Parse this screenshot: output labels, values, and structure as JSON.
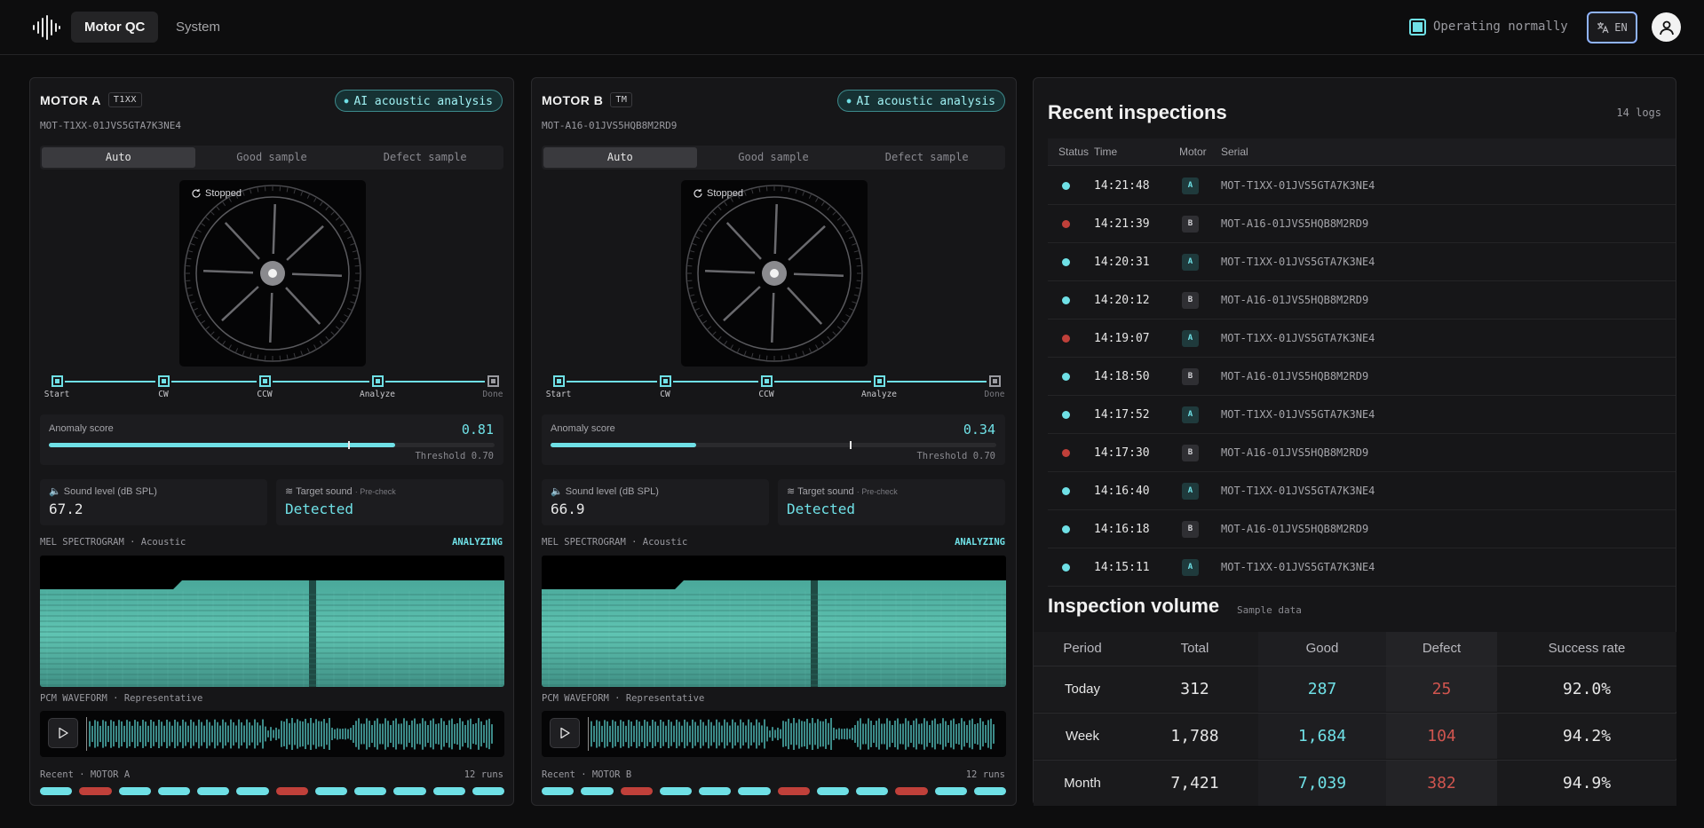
{
  "nav": {
    "tabs": [
      {
        "label": "Motor QC",
        "active": true
      },
      {
        "label": "System",
        "active": false
      }
    ],
    "status": "Operating normally",
    "language": "EN"
  },
  "motors": [
    {
      "name": "MOTOR A",
      "tag": "T1XX",
      "ai_badge": "AI acoustic analysis",
      "serial": "MOT-T1XX-01JVS5GTA7K3NE4",
      "modes": [
        "Auto",
        "Good sample",
        "Defect sample"
      ],
      "rotor_state": "Stopped",
      "steps": [
        "Start",
        "CW",
        "CCW",
        "Analyze",
        "Done"
      ],
      "anomaly_label": "Anomaly score",
      "anomaly_score": "0.81",
      "anomaly_fraction": 0.81,
      "threshold_label": "Threshold 0.70",
      "threshold_fraction": 0.7,
      "sound_label": "Sound level (dB SPL)",
      "sound_value": "67.2",
      "target_label": "Target sound",
      "target_sub": "· Pre-check",
      "target_value": "Detected",
      "spectro_label": "MEL SPECTROGRAM · Acoustic",
      "spectro_status": "ANALYZING",
      "wave_label": "PCM WAVEFORM · Representative",
      "recent_label": "Recent · MOTOR A",
      "recent_runs": "12 runs",
      "runs": [
        "good",
        "defect",
        "good",
        "good",
        "good",
        "good",
        "defect",
        "good",
        "good",
        "good",
        "good",
        "good"
      ]
    },
    {
      "name": "MOTOR B",
      "tag": "TM",
      "ai_badge": "AI acoustic analysis",
      "serial": "MOT-A16-01JVS5HQB8M2RD9",
      "modes": [
        "Auto",
        "Good sample",
        "Defect sample"
      ],
      "rotor_state": "Stopped",
      "steps": [
        "Start",
        "CW",
        "CCW",
        "Analyze",
        "Done"
      ],
      "anomaly_label": "Anomaly score",
      "anomaly_score": "0.34",
      "anomaly_fraction": 0.34,
      "threshold_label": "Threshold 0.70",
      "threshold_fraction": 0.7,
      "sound_label": "Sound level (dB SPL)",
      "sound_value": "66.9",
      "target_label": "Target sound",
      "target_sub": "· Pre-check",
      "target_value": "Detected",
      "spectro_label": "MEL SPECTROGRAM · Acoustic",
      "spectro_status": "ANALYZING",
      "wave_label": "PCM WAVEFORM · Representative",
      "recent_label": "Recent · MOTOR B",
      "recent_runs": "12 runs",
      "runs": [
        "good",
        "good",
        "defect",
        "good",
        "good",
        "good",
        "defect",
        "good",
        "good",
        "defect",
        "good",
        "good"
      ]
    }
  ],
  "inspections": {
    "title": "Recent inspections",
    "count": "14 logs",
    "columns": [
      "Status",
      "Time",
      "Motor",
      "Serial"
    ],
    "rows": [
      {
        "status": "good",
        "time": "14:21:48",
        "motor": "A",
        "serial": "MOT-T1XX-01JVS5GTA7K3NE4"
      },
      {
        "status": "defect",
        "time": "14:21:39",
        "motor": "B",
        "serial": "MOT-A16-01JVS5HQB8M2RD9"
      },
      {
        "status": "good",
        "time": "14:20:31",
        "motor": "A",
        "serial": "MOT-T1XX-01JVS5GTA7K3NE4"
      },
      {
        "status": "good",
        "time": "14:20:12",
        "motor": "B",
        "serial": "MOT-A16-01JVS5HQB8M2RD9"
      },
      {
        "status": "defect",
        "time": "14:19:07",
        "motor": "A",
        "serial": "MOT-T1XX-01JVS5GTA7K3NE4"
      },
      {
        "status": "good",
        "time": "14:18:50",
        "motor": "B",
        "serial": "MOT-A16-01JVS5HQB8M2RD9"
      },
      {
        "status": "good",
        "time": "14:17:52",
        "motor": "A",
        "serial": "MOT-T1XX-01JVS5GTA7K3NE4"
      },
      {
        "status": "defect",
        "time": "14:17:30",
        "motor": "B",
        "serial": "MOT-A16-01JVS5HQB8M2RD9"
      },
      {
        "status": "good",
        "time": "14:16:40",
        "motor": "A",
        "serial": "MOT-T1XX-01JVS5GTA7K3NE4"
      },
      {
        "status": "good",
        "time": "14:16:18",
        "motor": "B",
        "serial": "MOT-A16-01JVS5HQB8M2RD9"
      },
      {
        "status": "good",
        "time": "14:15:11",
        "motor": "A",
        "serial": "MOT-T1XX-01JVS5GTA7K3NE4"
      }
    ]
  },
  "volume": {
    "title": "Inspection volume",
    "subtitle": "Sample data",
    "columns": [
      "Period",
      "Total",
      "Good",
      "Defect",
      "Success rate"
    ],
    "rows": [
      {
        "period": "Today",
        "total": "312",
        "good": "287",
        "defect": "25",
        "rate": "92.0%"
      },
      {
        "period": "Week",
        "total": "1,788",
        "good": "1,684",
        "defect": "104",
        "rate": "94.2%"
      },
      {
        "period": "Month",
        "total": "7,421",
        "good": "7,039",
        "defect": "382",
        "rate": "94.9%"
      }
    ]
  },
  "colors": {
    "accent": "#6fe0e6",
    "defect": "#c0403a",
    "good": "#6fe0e6"
  },
  "icons": [
    "logo-waveform-icon",
    "translate-icon",
    "user-icon",
    "refresh-icon",
    "speaker-icon",
    "waves-icon",
    "play-icon"
  ]
}
